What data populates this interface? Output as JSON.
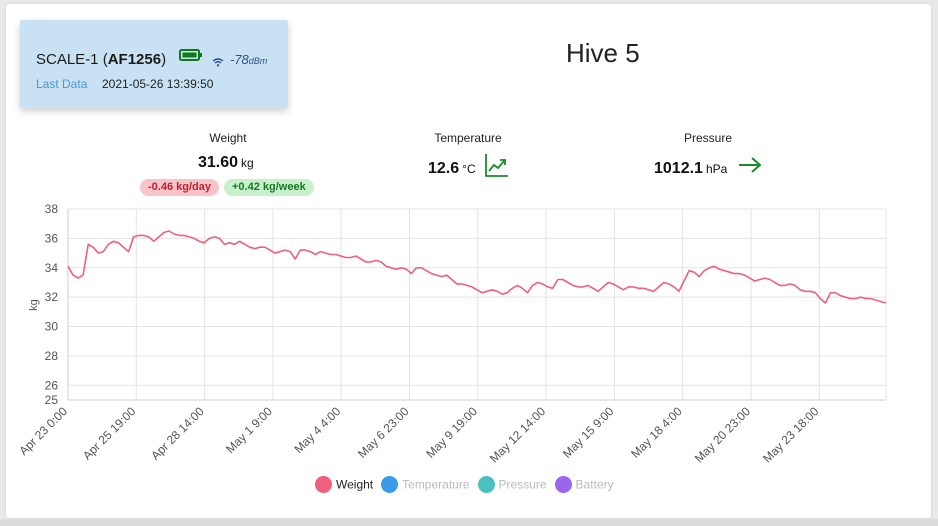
{
  "scale": {
    "name": "SCALE-1",
    "id": "AF1256",
    "rssi_value": "-78",
    "rssi_unit": "dBm",
    "last_data_label": "Last Data",
    "last_data_value": "2021-05-26 13:39:50"
  },
  "hive_title": "Hive 5",
  "metrics": {
    "weight": {
      "label": "Weight",
      "value": "31.60",
      "unit": "kg",
      "badge_day": "-0.46 kg/day",
      "badge_week": "+0.42 kg/week"
    },
    "temperature": {
      "label": "Temperature",
      "value": "12.6",
      "unit": "°C",
      "trend_icon": "trending-up-icon"
    },
    "pressure": {
      "label": "Pressure",
      "value": "1012.1",
      "unit": "hPa",
      "trend_icon": "arrow-right-icon"
    }
  },
  "colors": {
    "weight": "#f0607e",
    "temperature": "#3d9ae6",
    "pressure": "#4bc0c0",
    "battery": "#9a66ee",
    "badge_red_bg": "#f8c4c9",
    "badge_green_bg": "#c7f0cb",
    "trend_green": "#1a8a2b"
  },
  "legend": [
    {
      "label": "Weight",
      "active": true
    },
    {
      "label": "Temperature",
      "active": false
    },
    {
      "label": "Pressure",
      "active": false
    },
    {
      "label": "Battery",
      "active": false
    }
  ],
  "chart_data": {
    "type": "line",
    "ylabel": "kg",
    "ylim": [
      25,
      38
    ],
    "yticks": [
      38,
      36,
      34,
      32,
      30,
      28,
      26,
      25
    ],
    "grid": true,
    "x_tick_labels": [
      "Apr 23 0:00",
      "Apr 25 19:00",
      "Apr 28 14:00",
      "May 1 9:00",
      "May 4 4:00",
      "May 6 23:00",
      "May 9 19:00",
      "May 12 14:00",
      "May 15 9:00",
      "May 18 4:00",
      "May 20 23:00",
      "May 23 18:00"
    ],
    "series": [
      {
        "name": "Weight",
        "values": [
          34.1,
          33.5,
          33.3,
          33.5,
          35.6,
          35.4,
          35.0,
          35.1,
          35.6,
          35.8,
          35.7,
          35.4,
          35.1,
          36.1,
          36.2,
          36.2,
          36.1,
          35.8,
          36.1,
          36.4,
          36.5,
          36.3,
          36.2,
          36.2,
          36.1,
          36.0,
          35.8,
          35.7,
          36.0,
          36.1,
          36.0,
          35.6,
          35.7,
          35.6,
          35.8,
          35.6,
          35.4,
          35.3,
          35.4,
          35.4,
          35.2,
          35.0,
          35.1,
          35.2,
          35.1,
          34.6,
          35.2,
          35.2,
          35.1,
          34.9,
          35.1,
          35.0,
          34.9,
          34.9,
          34.8,
          34.7,
          34.7,
          34.8,
          34.6,
          34.4,
          34.4,
          34.5,
          34.4,
          34.1,
          34.0,
          33.9,
          34.0,
          33.9,
          33.6,
          34.0,
          34.0,
          33.8,
          33.6,
          33.5,
          33.4,
          33.5,
          33.2,
          32.9,
          32.9,
          32.8,
          32.7,
          32.5,
          32.3,
          32.4,
          32.5,
          32.4,
          32.2,
          32.3,
          32.6,
          32.8,
          32.6,
          32.3,
          32.8,
          33.0,
          32.9,
          32.7,
          32.6,
          33.2,
          33.2,
          33.0,
          32.8,
          32.7,
          32.7,
          32.8,
          32.6,
          32.4,
          32.7,
          33.0,
          32.9,
          32.7,
          32.5,
          32.7,
          32.7,
          32.6,
          32.6,
          32.5,
          32.4,
          32.7,
          33.0,
          32.9,
          32.7,
          32.4,
          33.1,
          33.8,
          33.7,
          33.4,
          33.8,
          34.0,
          34.1,
          33.9,
          33.8,
          33.7,
          33.6,
          33.6,
          33.5,
          33.3,
          33.1,
          33.2,
          33.3,
          33.2,
          33.0,
          32.8,
          32.8,
          32.9,
          32.8,
          32.5,
          32.4,
          32.4,
          32.3,
          31.9,
          31.6,
          32.3,
          32.3,
          32.1,
          32.0,
          31.9,
          31.9,
          32.0,
          31.9,
          31.9,
          31.8,
          31.7,
          31.6
        ]
      }
    ]
  }
}
